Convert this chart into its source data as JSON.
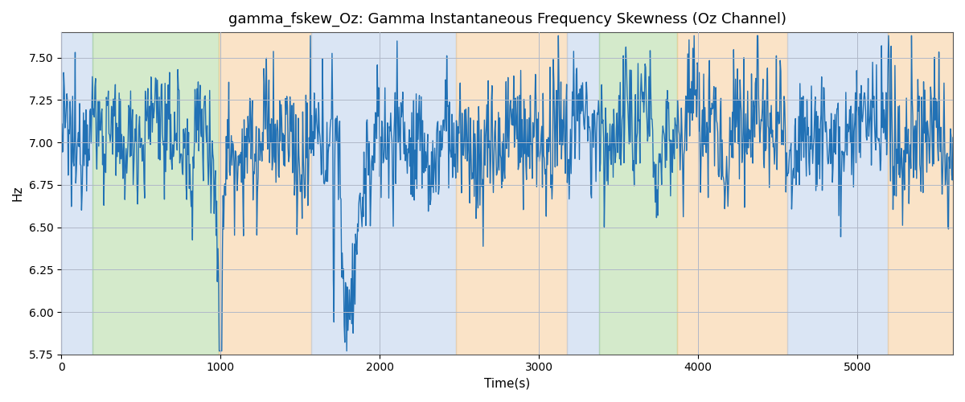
{
  "title": "gamma_fskew_Oz: Gamma Instantaneous Frequency Skewness (Oz Channel)",
  "xlabel": "Time(s)",
  "ylabel": "Hz",
  "xlim": [
    0,
    5600
  ],
  "ylim": [
    5.75,
    7.65
  ],
  "yticks": [
    5.75,
    6.0,
    6.25,
    6.5,
    6.75,
    7.0,
    7.25,
    7.5
  ],
  "xticks": [
    0,
    1000,
    2000,
    3000,
    4000,
    5000
  ],
  "line_color": "#2171b5",
  "line_width": 1.0,
  "background_color": "#ffffff",
  "grid_color": "#b0b8c8",
  "colored_regions": [
    {
      "xmin": 0,
      "xmax": 195,
      "color": "#aec6e8",
      "alpha": 0.45
    },
    {
      "xmin": 195,
      "xmax": 990,
      "color": "#90c878",
      "alpha": 0.38
    },
    {
      "xmin": 990,
      "xmax": 1570,
      "color": "#f5c68a",
      "alpha": 0.48
    },
    {
      "xmin": 1570,
      "xmax": 2480,
      "color": "#aec6e8",
      "alpha": 0.45
    },
    {
      "xmin": 2480,
      "xmax": 3175,
      "color": "#f5c68a",
      "alpha": 0.48
    },
    {
      "xmin": 3175,
      "xmax": 3380,
      "color": "#aec6e8",
      "alpha": 0.45
    },
    {
      "xmin": 3380,
      "xmax": 3870,
      "color": "#90c878",
      "alpha": 0.38
    },
    {
      "xmin": 3870,
      "xmax": 4560,
      "color": "#f5c68a",
      "alpha": 0.48
    },
    {
      "xmin": 4560,
      "xmax": 5190,
      "color": "#aec6e8",
      "alpha": 0.45
    },
    {
      "xmin": 5190,
      "xmax": 5600,
      "color": "#f5c68a",
      "alpha": 0.48
    }
  ],
  "title_fontsize": 13
}
